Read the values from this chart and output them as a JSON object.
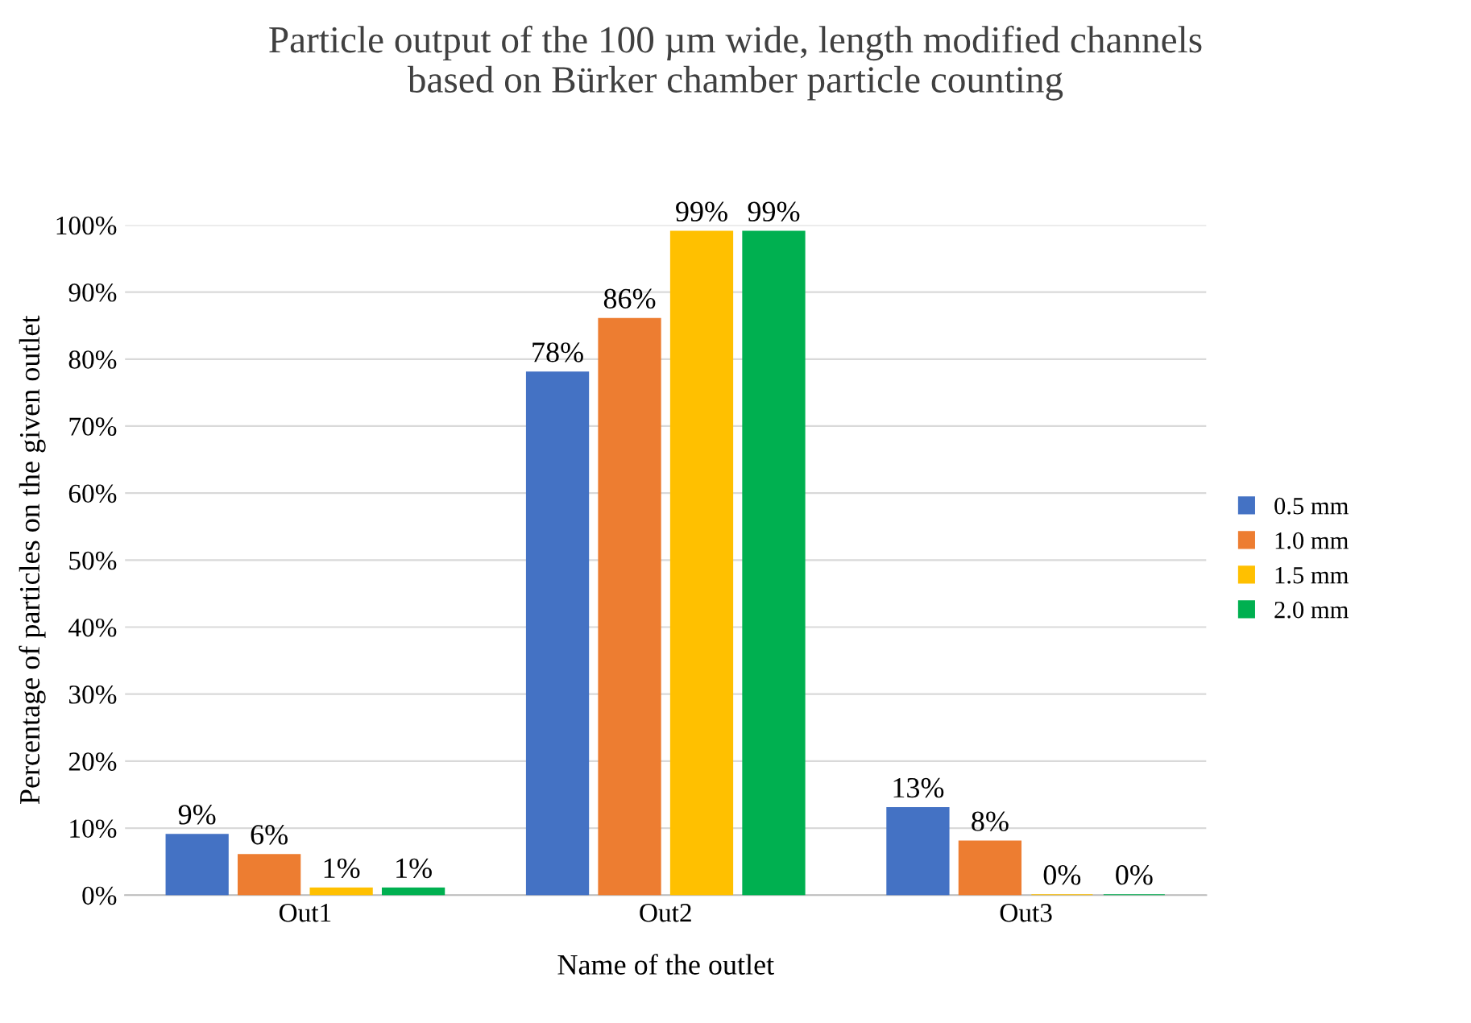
{
  "chart_data": {
    "type": "bar",
    "title": "Particle output of the 100 µm wide, length modified channels\nbased on Bürker chamber particle counting",
    "xlabel": "Name of the outlet",
    "ylabel": "Percentage of particles on the given outlet",
    "categories": [
      "Out1",
      "Out2",
      "Out3"
    ],
    "series": [
      {
        "name": "0.5 mm",
        "color": "#4472c4",
        "values": [
          9,
          78,
          13
        ],
        "value_labels": [
          "9%",
          "78%",
          "13%"
        ]
      },
      {
        "name": "1.0 mm",
        "color": "#ed7d31",
        "values": [
          6,
          86,
          8
        ],
        "value_labels": [
          "6%",
          "86%",
          "8%"
        ]
      },
      {
        "name": "1.5 mm",
        "color": "#ffc000",
        "values": [
          1,
          99,
          0
        ],
        "value_labels": [
          "1%",
          "99%",
          "0%"
        ]
      },
      {
        "name": "2.0 mm",
        "color": "#00b050",
        "values": [
          1,
          99,
          0
        ],
        "value_labels": [
          "1%",
          "99%",
          "0%"
        ]
      }
    ],
    "ylim": [
      0,
      100
    ],
    "yticks": [
      {
        "value": 0,
        "label": "0%"
      },
      {
        "value": 10,
        "label": "10%"
      },
      {
        "value": 20,
        "label": "20%"
      },
      {
        "value": 30,
        "label": "30%"
      },
      {
        "value": 40,
        "label": "40%"
      },
      {
        "value": 50,
        "label": "50%"
      },
      {
        "value": 60,
        "label": "60%"
      },
      {
        "value": 70,
        "label": "70%"
      },
      {
        "value": 80,
        "label": "80%"
      },
      {
        "value": 90,
        "label": "90%"
      },
      {
        "value": 100,
        "label": "100%"
      }
    ],
    "grid": "y",
    "legend": "right"
  }
}
